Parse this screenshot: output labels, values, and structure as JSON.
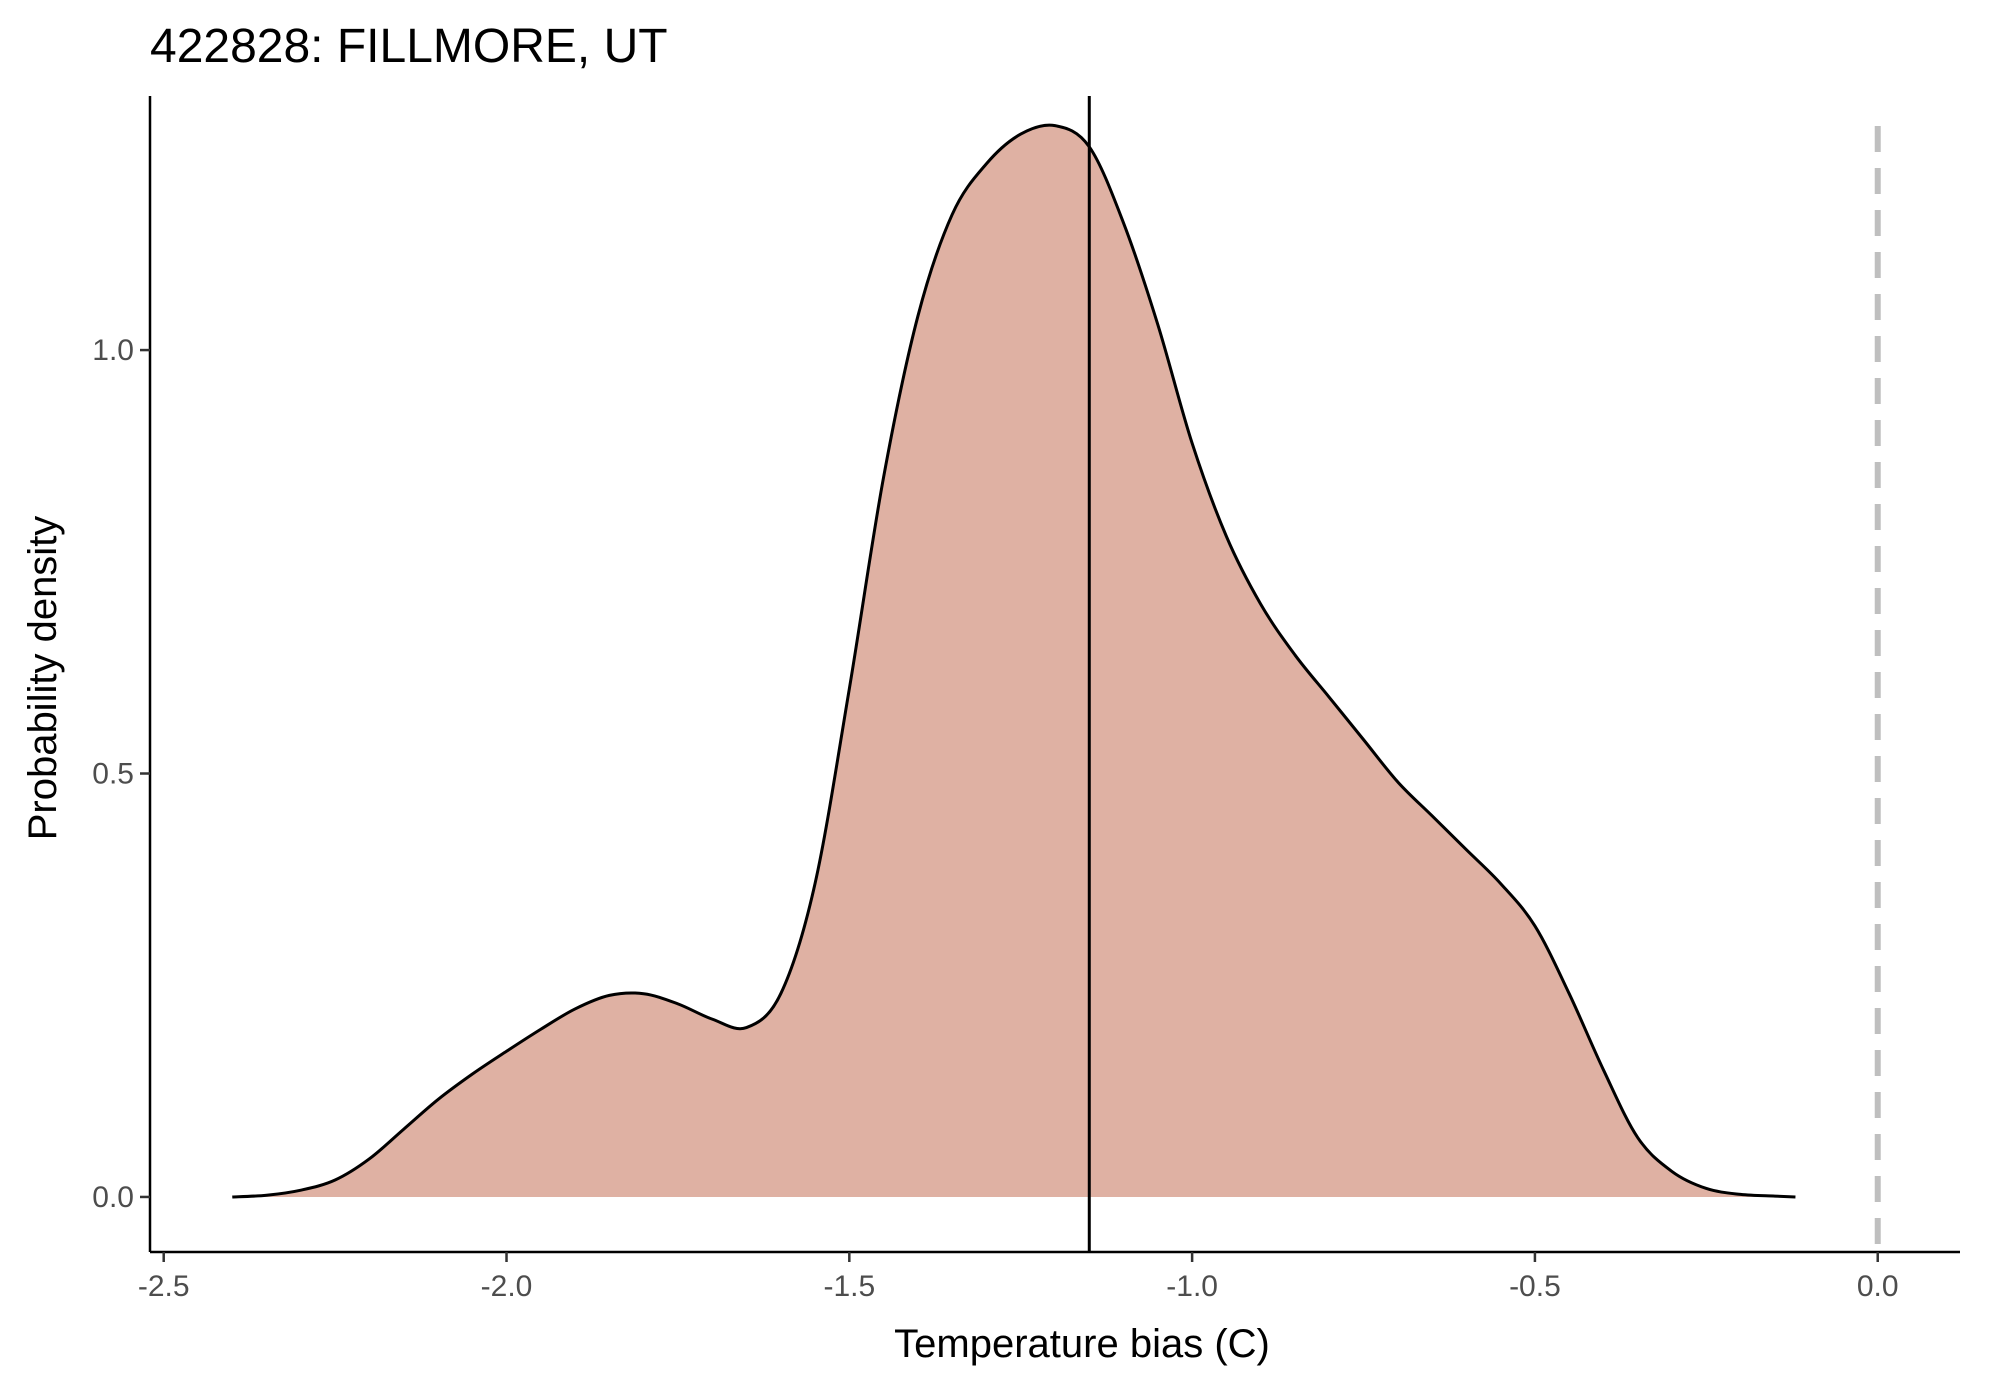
{
  "chart_data": {
    "type": "area",
    "title": "422828: FILLMORE, UT",
    "xlabel": "Temperature bias (C)",
    "ylabel": "Probability density",
    "xlim": [
      -2.52,
      0.12
    ],
    "ylim": [
      -0.065,
      1.3
    ],
    "x_ticks": [
      -2.5,
      -2.0,
      -1.5,
      -1.0,
      -0.5,
      0.0
    ],
    "x_tick_labels": [
      "-2.5",
      "-2.0",
      "-1.5",
      "-1.0",
      "-0.5",
      "0.0"
    ],
    "y_ticks": [
      0.0,
      0.5,
      1.0
    ],
    "y_tick_labels": [
      "0.0",
      "0.5",
      "1.0"
    ],
    "grid": false,
    "fill_color": "#dfb1a3",
    "line_color": "#000000",
    "reference_line_color": "#bfbfbf",
    "mean_line": -1.15,
    "zero_line": 0.0,
    "series": [
      {
        "x": [
          -2.4,
          -2.35,
          -2.3,
          -2.25,
          -2.2,
          -2.15,
          -2.1,
          -2.05,
          -2.0,
          -1.95,
          -1.9,
          -1.85,
          -1.8,
          -1.75,
          -1.7,
          -1.65,
          -1.6,
          -1.55,
          -1.5,
          -1.45,
          -1.4,
          -1.35,
          -1.3,
          -1.25,
          -1.2,
          -1.15,
          -1.1,
          -1.05,
          -1.0,
          -0.95,
          -0.9,
          -0.85,
          -0.8,
          -0.75,
          -0.7,
          -0.65,
          -0.6,
          -0.55,
          -0.5,
          -0.45,
          -0.4,
          -0.35,
          -0.3,
          -0.25,
          -0.2,
          -0.15,
          -0.12
        ],
        "y": [
          0.0,
          0.002,
          0.008,
          0.02,
          0.045,
          0.08,
          0.115,
          0.145,
          0.172,
          0.198,
          0.222,
          0.238,
          0.24,
          0.228,
          0.21,
          0.2,
          0.24,
          0.37,
          0.6,
          0.85,
          1.04,
          1.16,
          1.22,
          1.255,
          1.265,
          1.24,
          1.15,
          1.03,
          0.89,
          0.78,
          0.7,
          0.64,
          0.59,
          0.54,
          0.49,
          0.45,
          0.41,
          0.37,
          0.32,
          0.24,
          0.15,
          0.07,
          0.03,
          0.01,
          0.003,
          0.001,
          0.0
        ]
      }
    ]
  }
}
